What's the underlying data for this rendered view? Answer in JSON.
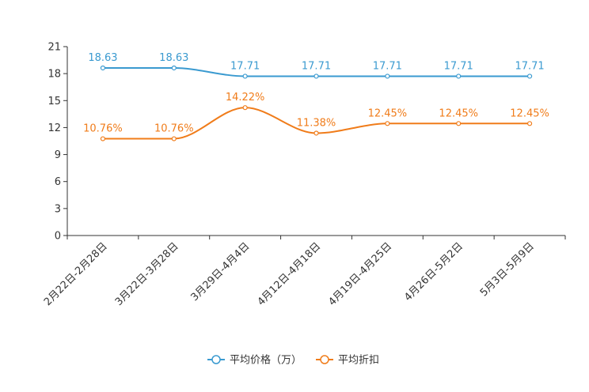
{
  "chart_data": {
    "type": "line",
    "title": "",
    "xlabel": "",
    "ylabel": "",
    "ylim": [
      0,
      21
    ],
    "yticks": [
      0,
      3,
      6,
      9,
      12,
      15,
      18,
      21
    ],
    "grid": false,
    "legend_position": "bottom-center",
    "categories": [
      "2月22日-2月28日",
      "3月22日-3月28日",
      "3月29日-4月4日",
      "4月12日-4月18日",
      "4月19日-4月25日",
      "4月26日-5月2日",
      "5月3日-5月9日"
    ],
    "series": [
      {
        "name": "平均价格（万）",
        "color": "#3a9ad0",
        "values": [
          18.63,
          18.63,
          17.71,
          17.71,
          17.71,
          17.71,
          17.71
        ],
        "labels": [
          "18.63",
          "18.63",
          "17.71",
          "17.71",
          "17.71",
          "17.71",
          "17.71"
        ]
      },
      {
        "name": "平均折扣",
        "color": "#f07c1a",
        "values": [
          10.76,
          10.76,
          14.22,
          11.38,
          12.45,
          12.45,
          12.45
        ],
        "labels": [
          "10.76%",
          "10.76%",
          "14.22%",
          "11.38%",
          "12.45%",
          "12.45%",
          "12.45%"
        ]
      }
    ]
  }
}
